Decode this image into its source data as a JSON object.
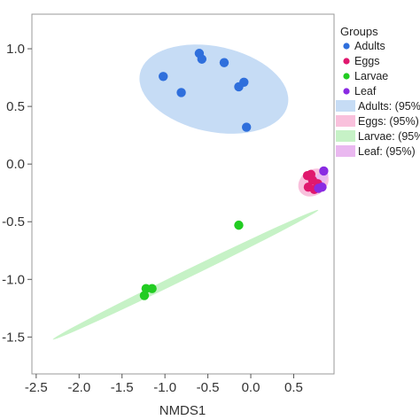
{
  "chart_data": {
    "type": "scatter",
    "title": "",
    "xlabel": "NMDS1",
    "ylabel": "",
    "xlim": [
      -2.55,
      0.97
    ],
    "ylim": [
      -1.82,
      1.3
    ],
    "xticks": [
      -2.5,
      -2.0,
      -1.5,
      -1.0,
      -0.5,
      0.0,
      0.5
    ],
    "xtick_labels": [
      "-2.5",
      "-2.0",
      "-1.5",
      "-1.0",
      "-0.5",
      "0.0",
      "0.5"
    ],
    "yticks": [
      1.0,
      0.5,
      0.0,
      -0.5,
      -1.0,
      -1.5
    ],
    "ytick_labels": [
      "1.0",
      "0.5",
      "0.0",
      "-0.5",
      "-1.0",
      "-1.5"
    ],
    "grid": false,
    "legend": {
      "title": "Groups",
      "placement": "top-right-outside",
      "point_entries": [
        {
          "label": "Adults",
          "color": "#2f6fdc"
        },
        {
          "label": "Eggs",
          "color": "#e0186e"
        },
        {
          "label": "Larvae",
          "color": "#22cc22"
        },
        {
          "label": "Leaf",
          "color": "#8a2be2"
        }
      ],
      "ellipse_entries": [
        {
          "label": "Adults: (95%",
          "color": "#c6dcf5"
        },
        {
          "label": "Eggs: (95%)",
          "color": "#f9c0dc"
        },
        {
          "label": "Larvae: (95%",
          "color": "#c6f2c6"
        },
        {
          "label": "Leaf: (95%)",
          "color": "#eab8f0"
        }
      ]
    },
    "series": [
      {
        "name": "Adults",
        "color": "#2f6fdc",
        "points": [
          {
            "x": -0.6,
            "y": 0.96
          },
          {
            "x": -0.57,
            "y": 0.91
          },
          {
            "x": -1.02,
            "y": 0.76
          },
          {
            "x": -0.81,
            "y": 0.62
          },
          {
            "x": -0.31,
            "y": 0.88
          },
          {
            "x": -0.08,
            "y": 0.71
          },
          {
            "x": -0.14,
            "y": 0.67
          },
          {
            "x": -0.05,
            "y": 0.32
          }
        ]
      },
      {
        "name": "Eggs",
        "color": "#e0186e",
        "points": [
          {
            "x": 0.66,
            "y": -0.1
          },
          {
            "x": 0.72,
            "y": -0.14
          },
          {
            "x": 0.67,
            "y": -0.2
          },
          {
            "x": 0.74,
            "y": -0.22
          },
          {
            "x": 0.78,
            "y": -0.17
          },
          {
            "x": 0.7,
            "y": -0.09
          }
        ]
      },
      {
        "name": "Larvae",
        "color": "#22cc22",
        "points": [
          {
            "x": -0.14,
            "y": -0.53
          },
          {
            "x": -1.22,
            "y": -1.08
          },
          {
            "x": -1.15,
            "y": -1.08
          },
          {
            "x": -1.24,
            "y": -1.14
          }
        ]
      },
      {
        "name": "Leaf",
        "color": "#8a2be2",
        "points": [
          {
            "x": 0.85,
            "y": -0.06
          },
          {
            "x": 0.79,
            "y": -0.21
          },
          {
            "x": 0.83,
            "y": -0.2
          }
        ]
      }
    ],
    "ellipses": [
      {
        "group": "Adults",
        "color": "#c6dcf5",
        "cx": -0.43,
        "cy": 0.65,
        "rx": 0.88,
        "ry": 0.37,
        "angle_deg": -12
      },
      {
        "group": "Larvae",
        "color": "#c6f2c6",
        "cx": -0.76,
        "cy": -0.96,
        "rx": 1.72,
        "ry": 0.035,
        "angle_deg": 26
      },
      {
        "group": "Eggs",
        "color": "#f9c0dc",
        "cx": 0.73,
        "cy": -0.16,
        "rx": 0.19,
        "ry": 0.11,
        "angle_deg": 35
      },
      {
        "group": "Leaf",
        "color": "#eab8f0",
        "cx": 0.78,
        "cy": -0.15,
        "rx": 0.15,
        "ry": 0.05,
        "angle_deg": 40
      }
    ]
  }
}
